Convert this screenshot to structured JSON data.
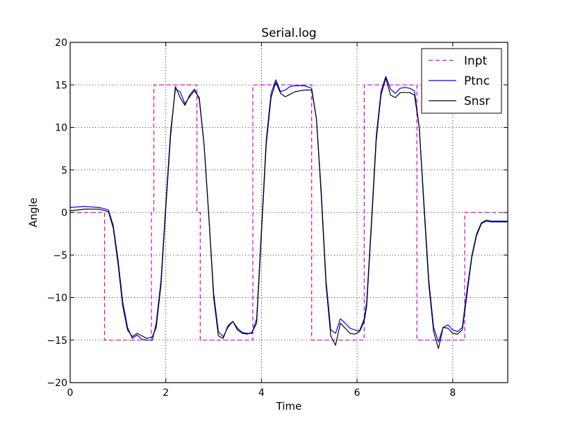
{
  "chart_data": {
    "type": "line",
    "title": "Serial.log",
    "xlabel": "Time",
    "ylabel": "Angle",
    "xlim": [
      0,
      9.15
    ],
    "ylim": [
      -20,
      20
    ],
    "xticks": [
      0,
      2,
      4,
      6,
      8
    ],
    "yticks": [
      -20,
      -15,
      -10,
      -5,
      0,
      5,
      10,
      15,
      20
    ],
    "xtick_labels": [
      "0",
      "2",
      "4",
      "6",
      "8"
    ],
    "ytick_labels": [
      "−20",
      "−15",
      "−10",
      "−5",
      "0",
      "5",
      "10",
      "15",
      "20"
    ],
    "grid": true,
    "legend_position": "top-right",
    "series": [
      {
        "name": "Inpt",
        "color": "#cc00cc",
        "style": "dashed",
        "x": [
          0,
          0.72,
          0.72,
          1.7,
          1.7,
          1.75,
          1.75,
          2.65,
          2.65,
          2.72,
          2.72,
          3.82,
          3.82,
          5.05,
          5.05,
          6.15,
          6.15,
          7.25,
          7.25,
          8.25,
          8.25,
          9.15
        ],
        "y": [
          0,
          0,
          -15,
          -15,
          0,
          0,
          15,
          15,
          0,
          0,
          -15,
          -15,
          15,
          15,
          -15,
          -15,
          15,
          15,
          -15,
          -15,
          0,
          0
        ]
      },
      {
        "name": "Ptnc",
        "color": "#0000ff",
        "style": "solid",
        "x": [
          0,
          0.3,
          0.6,
          0.8,
          0.9,
          1.0,
          1.1,
          1.2,
          1.3,
          1.4,
          1.5,
          1.6,
          1.72,
          1.8,
          1.9,
          2.0,
          2.1,
          2.2,
          2.3,
          2.4,
          2.5,
          2.6,
          2.7,
          2.8,
          2.9,
          3.0,
          3.1,
          3.2,
          3.3,
          3.4,
          3.5,
          3.6,
          3.7,
          3.8,
          3.9,
          4.0,
          4.1,
          4.2,
          4.3,
          4.4,
          4.5,
          4.6,
          4.7,
          4.8,
          4.9,
          5.05,
          5.15,
          5.25,
          5.35,
          5.45,
          5.55,
          5.65,
          5.75,
          5.85,
          5.95,
          6.05,
          6.15,
          6.2,
          6.3,
          6.4,
          6.5,
          6.6,
          6.7,
          6.8,
          6.9,
          7.0,
          7.1,
          7.2,
          7.3,
          7.4,
          7.5,
          7.6,
          7.7,
          7.8,
          7.9,
          8.0,
          8.1,
          8.2,
          8.3,
          8.4,
          8.5,
          8.6,
          8.7,
          8.8,
          8.9,
          9.15
        ],
        "y": [
          0.6,
          0.7,
          0.6,
          0.3,
          -1.5,
          -5.5,
          -10.5,
          -13.5,
          -14.8,
          -14.4,
          -14.9,
          -15.0,
          -15.0,
          -13.0,
          -8.0,
          1.0,
          9.5,
          14.5,
          14.2,
          12.8,
          13.6,
          14.3,
          13.5,
          8.0,
          -0.5,
          -9.5,
          -14.0,
          -14.6,
          -13.5,
          -12.8,
          -13.6,
          -14.1,
          -14.2,
          -14.2,
          -12.5,
          -2.0,
          8.5,
          14.0,
          15.6,
          14.2,
          14.4,
          14.8,
          14.9,
          14.9,
          14.9,
          14.6,
          11.0,
          2.5,
          -8.0,
          -13.8,
          -14.2,
          -12.5,
          -13.0,
          -13.6,
          -13.8,
          -13.9,
          -12.5,
          -10.5,
          -1.0,
          9.0,
          14.2,
          16.0,
          14.5,
          14.0,
          14.6,
          14.7,
          14.6,
          14.3,
          10.0,
          1.0,
          -8.0,
          -13.5,
          -15.2,
          -13.5,
          -13.2,
          -13.8,
          -14.0,
          -13.5,
          -9.0,
          -5.0,
          -2.5,
          -1.2,
          -0.9,
          -1.0,
          -1.0,
          -1.0
        ]
      },
      {
        "name": "Snsr",
        "color": "#000000",
        "style": "solid",
        "x": [
          0,
          0.3,
          0.6,
          0.8,
          0.9,
          1.0,
          1.1,
          1.2,
          1.3,
          1.4,
          1.5,
          1.6,
          1.72,
          1.8,
          1.9,
          2.0,
          2.1,
          2.2,
          2.3,
          2.4,
          2.5,
          2.6,
          2.7,
          2.8,
          2.9,
          3.0,
          3.1,
          3.2,
          3.3,
          3.4,
          3.5,
          3.6,
          3.7,
          3.8,
          3.9,
          4.0,
          4.1,
          4.2,
          4.3,
          4.4,
          4.5,
          4.6,
          4.7,
          4.8,
          4.9,
          5.05,
          5.15,
          5.25,
          5.35,
          5.45,
          5.55,
          5.65,
          5.75,
          5.85,
          5.95,
          6.05,
          6.15,
          6.2,
          6.3,
          6.4,
          6.5,
          6.6,
          6.7,
          6.8,
          6.9,
          7.0,
          7.1,
          7.2,
          7.3,
          7.4,
          7.5,
          7.6,
          7.7,
          7.8,
          7.9,
          8.0,
          8.1,
          8.2,
          8.3,
          8.4,
          8.5,
          8.6,
          8.7,
          8.8,
          8.9,
          9.15
        ],
        "y": [
          0.2,
          0.4,
          0.4,
          0.1,
          -1.8,
          -6.0,
          -11.0,
          -13.8,
          -14.6,
          -14.2,
          -14.5,
          -14.8,
          -14.6,
          -13.5,
          -8.5,
          0.5,
          9.0,
          14.8,
          13.5,
          12.6,
          13.8,
          14.5,
          13.3,
          8.0,
          -0.5,
          -10.0,
          -14.5,
          -14.8,
          -13.3,
          -12.8,
          -13.8,
          -14.2,
          -14.3,
          -14.1,
          -13.0,
          -2.5,
          8.0,
          13.5,
          15.3,
          14.0,
          13.6,
          13.9,
          14.2,
          14.3,
          14.4,
          14.4,
          11.0,
          2.0,
          -8.5,
          -14.5,
          -15.6,
          -13.0,
          -13.6,
          -14.2,
          -14.3,
          -14.0,
          -12.8,
          -11.0,
          -1.5,
          8.5,
          13.8,
          15.8,
          13.8,
          13.5,
          14.1,
          14.1,
          14.1,
          13.8,
          10.0,
          0.5,
          -8.5,
          -14.0,
          -16.0,
          -13.5,
          -13.6,
          -14.2,
          -14.3,
          -13.8,
          -9.5,
          -5.2,
          -2.7,
          -1.3,
          -1.0,
          -1.1,
          -1.1,
          -1.1
        ]
      }
    ]
  }
}
